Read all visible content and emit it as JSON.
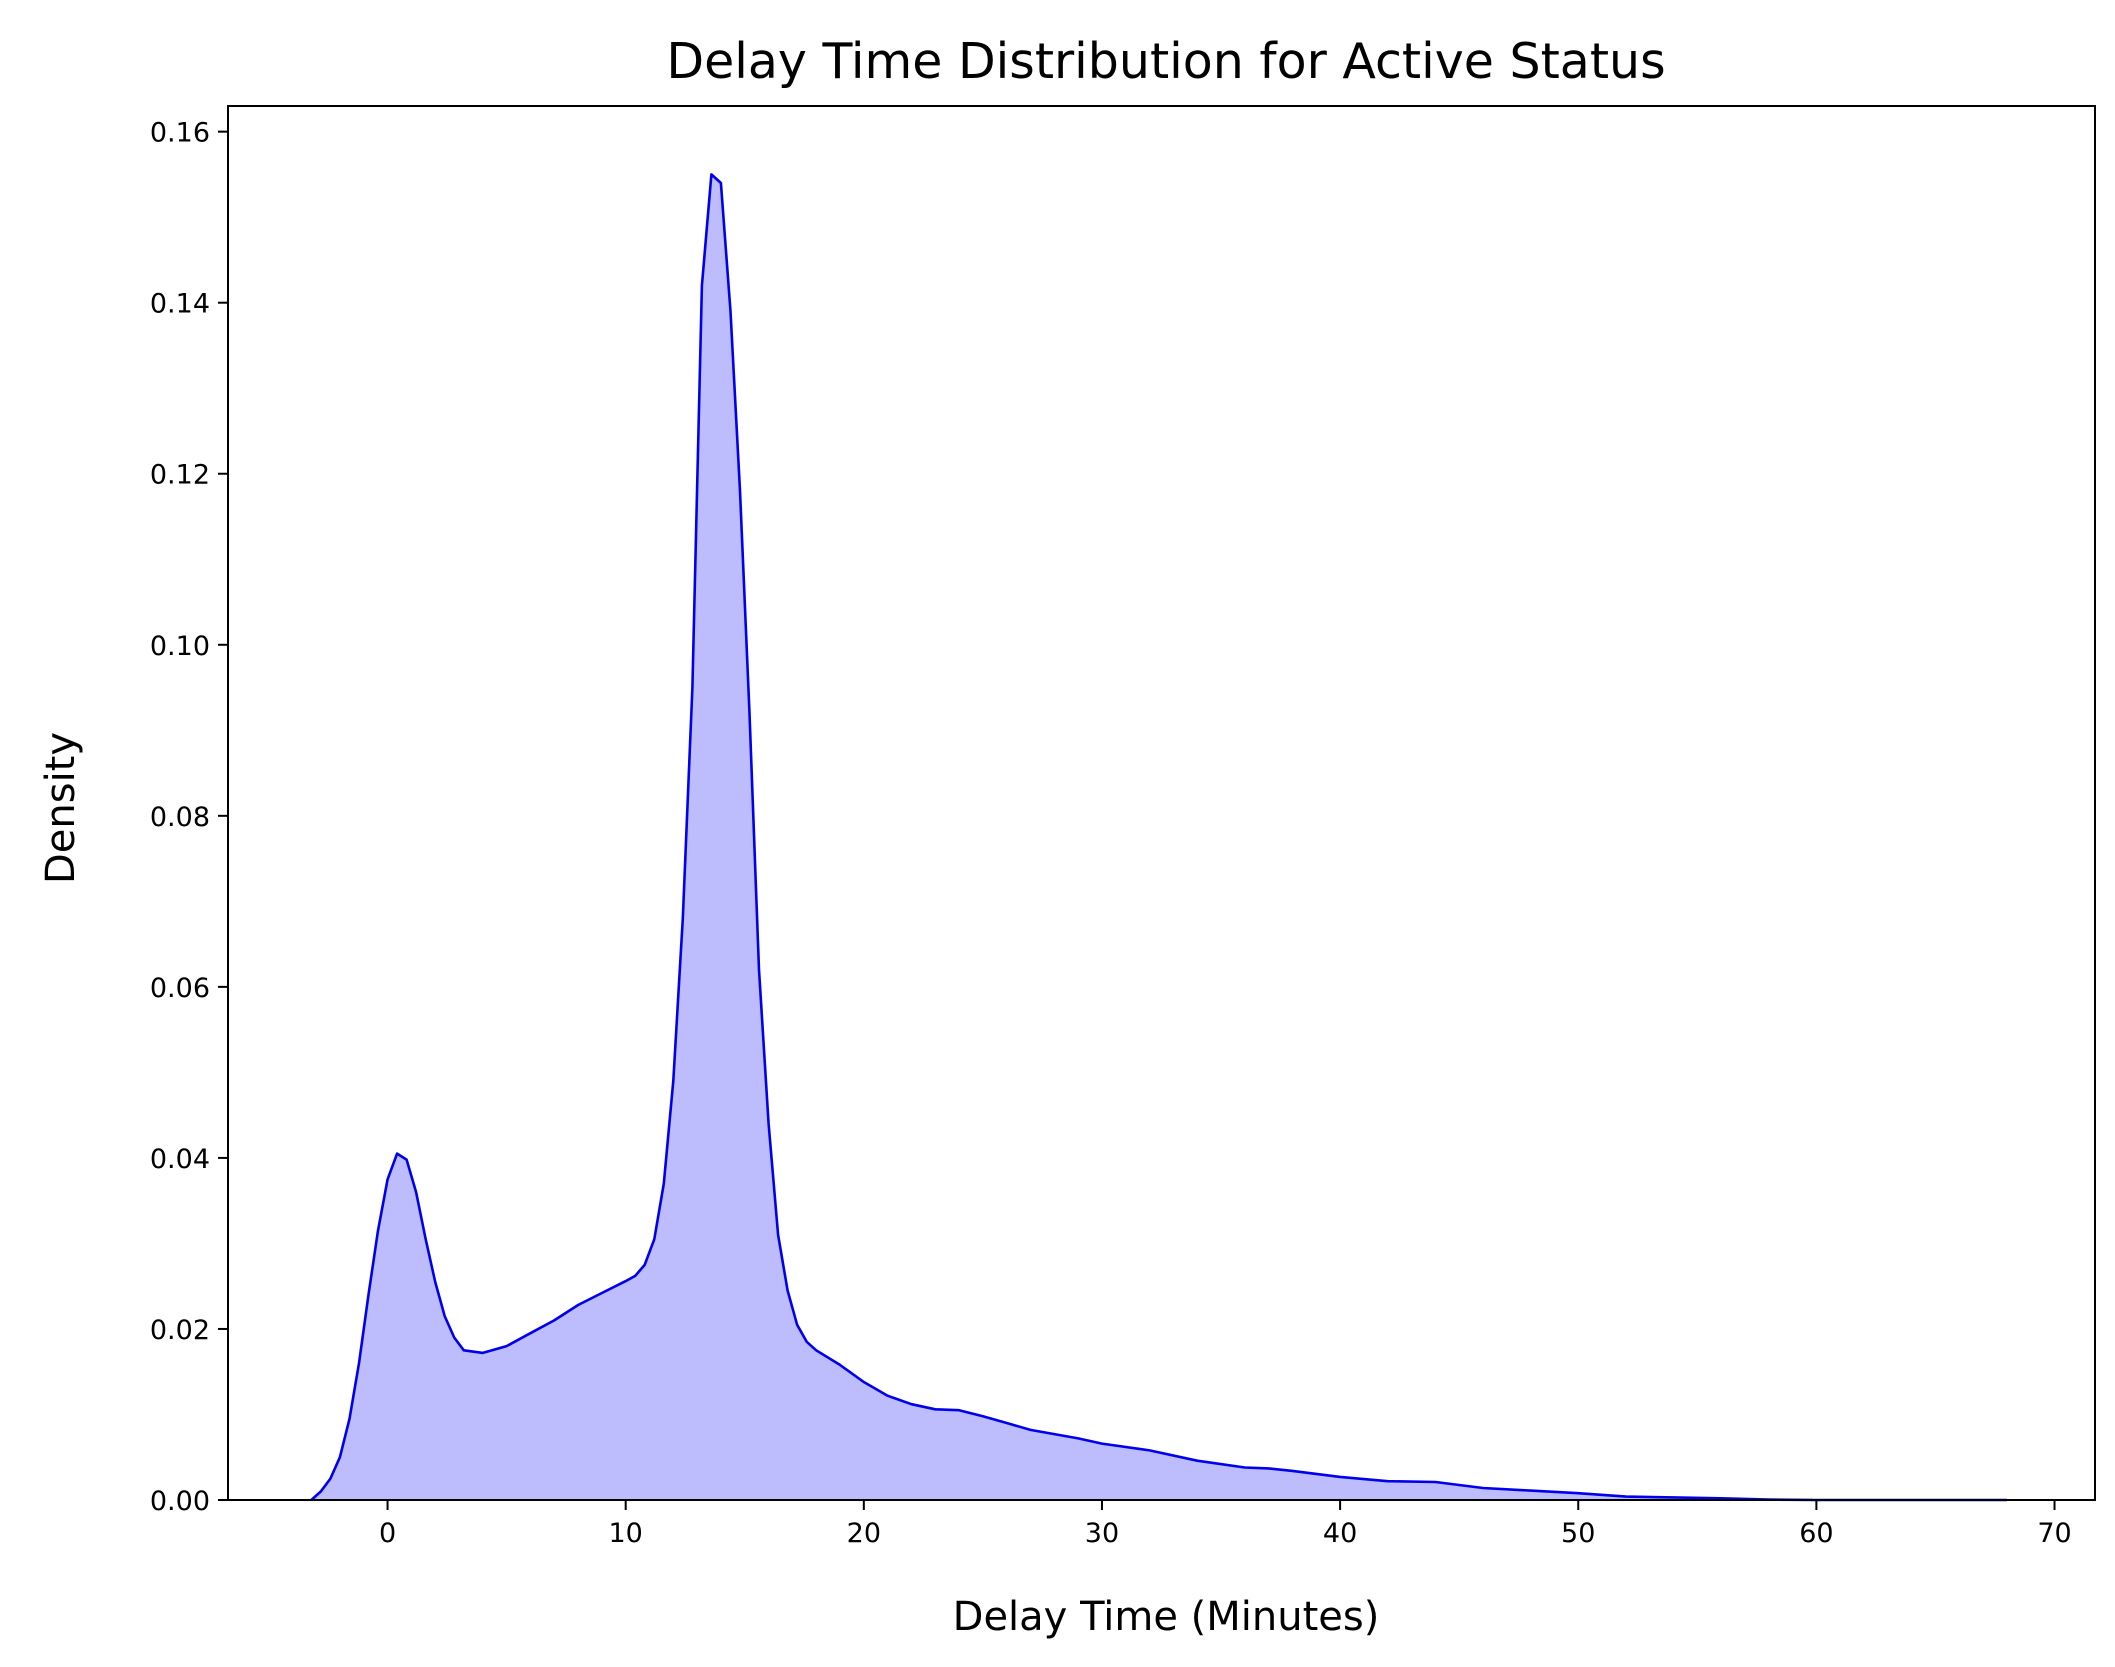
{
  "chart_data": {
    "type": "area",
    "title": "Delay Time Distribution for Active Status",
    "xlabel": "Delay Time (Minutes)",
    "ylabel": "Density",
    "xlim": [
      -6.7,
      71.7
    ],
    "ylim": [
      0,
      0.163
    ],
    "x_ticks": [
      0,
      10,
      20,
      30,
      40,
      50,
      60,
      70
    ],
    "y_ticks": [
      0.0,
      0.02,
      0.04,
      0.06,
      0.08,
      0.1,
      0.12,
      0.14,
      0.16
    ],
    "x_tick_labels": [
      "0",
      "10",
      "20",
      "30",
      "40",
      "50",
      "60",
      "70"
    ],
    "y_tick_labels": [
      "0.00",
      "0.02",
      "0.04",
      "0.06",
      "0.08",
      "0.10",
      "0.12",
      "0.14",
      "0.16"
    ],
    "grid": false,
    "legend": "none",
    "colors": {
      "line": "#0000ee",
      "fill": "#bdbdfd"
    },
    "series": [
      {
        "x": [
          -3.2,
          -2.8,
          -2.4,
          -2.0,
          -1.6,
          -1.2,
          -0.8,
          -0.4,
          0.0,
          0.4,
          0.8,
          1.2,
          1.6,
          2.0,
          2.4,
          2.8,
          3.2,
          4.0,
          5.0,
          6.0,
          7.0,
          8.0,
          9.0,
          10.0,
          10.4,
          10.8,
          11.2,
          11.6,
          12.0,
          12.4,
          12.8,
          13.2,
          13.6,
          14.0,
          14.4,
          14.8,
          15.2,
          15.6,
          16.0,
          16.4,
          16.8,
          17.2,
          17.6,
          18.0,
          19.0,
          20.0,
          21.0,
          22.0,
          23.0,
          24.0,
          25.0,
          26.0,
          27.0,
          28.0,
          29.0,
          30.0,
          32.0,
          34.0,
          36.0,
          37.0,
          38.0,
          40.0,
          42.0,
          44.0,
          46.0,
          48.0,
          50.0,
          52.0,
          54.0,
          56.0,
          58.0,
          60.0,
          62.0,
          64.0,
          66.0,
          68.0
        ],
        "values": [
          0.0,
          0.001,
          0.0025,
          0.005,
          0.0095,
          0.016,
          0.024,
          0.0315,
          0.0375,
          0.0405,
          0.0398,
          0.036,
          0.0305,
          0.0255,
          0.0215,
          0.019,
          0.0175,
          0.0172,
          0.018,
          0.0195,
          0.021,
          0.0228,
          0.0242,
          0.0256,
          0.0262,
          0.0275,
          0.0305,
          0.037,
          0.049,
          0.068,
          0.095,
          0.142,
          0.155,
          0.154,
          0.139,
          0.118,
          0.092,
          0.062,
          0.044,
          0.031,
          0.0245,
          0.0205,
          0.0185,
          0.0175,
          0.0158,
          0.0138,
          0.0122,
          0.0112,
          0.0106,
          0.0105,
          0.0098,
          0.009,
          0.0082,
          0.0077,
          0.0072,
          0.0066,
          0.0058,
          0.0046,
          0.0038,
          0.0037,
          0.0034,
          0.0027,
          0.0022,
          0.0021,
          0.0014,
          0.0011,
          0.0008,
          0.0004,
          0.0003,
          0.0002,
          5e-05,
          0.0,
          0.0,
          0.0,
          0.0,
          0.0
        ]
      }
    ]
  }
}
